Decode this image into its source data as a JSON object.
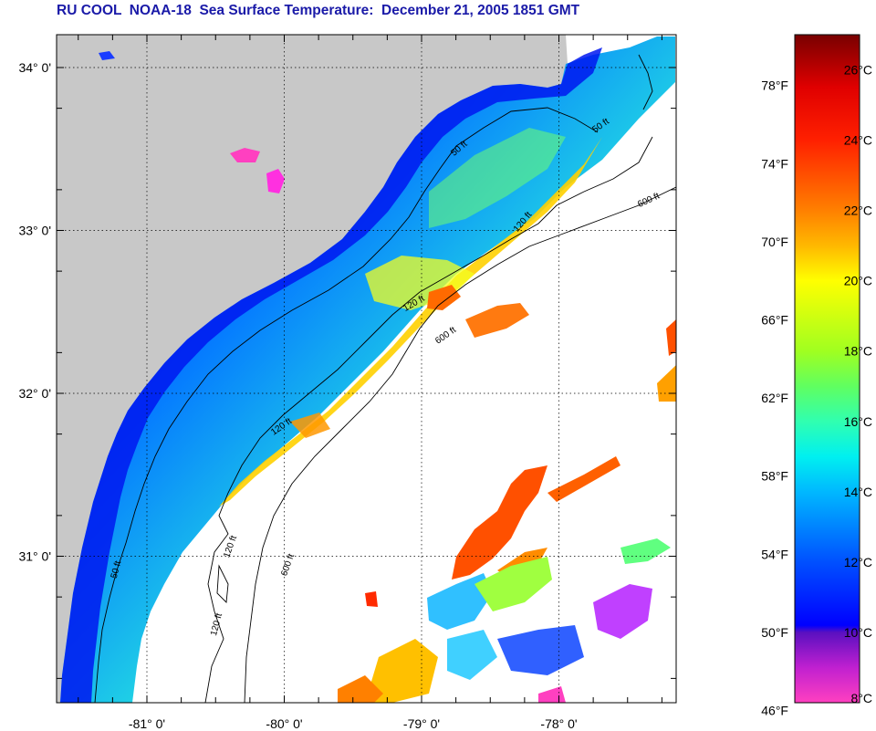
{
  "title": "RU COOL  NOAA-18  Sea Surface Temperature:  December 21, 2005 1851 GMT",
  "map": {
    "lat_labels": [
      {
        "text": "34° 0'",
        "lat": 34
      },
      {
        "text": "33° 0'",
        "lat": 33
      },
      {
        "text": "32° 0'",
        "lat": 32
      },
      {
        "text": "31° 0'",
        "lat": 31
      }
    ],
    "lon_labels": [
      {
        "text": "-81° 0'",
        "lon": -81
      },
      {
        "text": "-80° 0'",
        "lon": -80
      },
      {
        "text": "-79° 0'",
        "lon": -79
      },
      {
        "text": "-78° 0'",
        "lon": -78
      }
    ],
    "land_color": "#c8c8c8",
    "ocean_color": "#ffffff",
    "isobath_labels": [
      "50 ft",
      "120 ft",
      "600 ft"
    ],
    "contour_labels": [
      {
        "text": "50 ft"
      },
      {
        "text": "50 ft"
      },
      {
        "text": "50 ft"
      },
      {
        "text": "120 ft"
      },
      {
        "text": "120 ft"
      },
      {
        "text": "120 ft"
      },
      {
        "text": "120 ft"
      },
      {
        "text": "120 ft"
      },
      {
        "text": "600 ft"
      },
      {
        "text": "600 ft"
      },
      {
        "text": "600 ft"
      }
    ]
  },
  "colorbar": {
    "range_c": [
      8,
      27
    ],
    "range_f": [
      46,
      80.6
    ],
    "fahrenheit_labels": [
      {
        "text": "78°F",
        "f": 78
      },
      {
        "text": "74°F",
        "f": 74
      },
      {
        "text": "70°F",
        "f": 70
      },
      {
        "text": "66°F",
        "f": 66
      },
      {
        "text": "62°F",
        "f": 62
      },
      {
        "text": "58°F",
        "f": 58
      },
      {
        "text": "54°F",
        "f": 54
      },
      {
        "text": "50°F",
        "f": 50
      },
      {
        "text": "46°F",
        "f": 46
      }
    ],
    "celsius_labels": [
      {
        "text": "26°C",
        "c": 26
      },
      {
        "text": "24°C",
        "c": 24
      },
      {
        "text": "22°C",
        "c": 22
      },
      {
        "text": "20°C",
        "c": 20
      },
      {
        "text": "18°C",
        "c": 18
      },
      {
        "text": "16°C",
        "c": 16
      },
      {
        "text": "14°C",
        "c": 14
      },
      {
        "text": "12°C",
        "c": 12
      },
      {
        "text": "10°C",
        "c": 10
      },
      {
        "text": "8°C",
        "c": 8
      }
    ],
    "stops": [
      {
        "c": 8,
        "color": "#ff40c0"
      },
      {
        "c": 9,
        "color": "#c020d0"
      },
      {
        "c": 10,
        "color": "#5a10c0"
      },
      {
        "c": 10.2,
        "color": "#0000ff"
      },
      {
        "c": 12,
        "color": "#0050ff"
      },
      {
        "c": 14,
        "color": "#00b8ff"
      },
      {
        "c": 15,
        "color": "#00f0f0"
      },
      {
        "c": 16,
        "color": "#30ffb0"
      },
      {
        "c": 17,
        "color": "#60ff60"
      },
      {
        "c": 18,
        "color": "#a0ff20"
      },
      {
        "c": 20,
        "color": "#ffff00"
      },
      {
        "c": 21,
        "color": "#ffb800"
      },
      {
        "c": 22,
        "color": "#ff8000"
      },
      {
        "c": 24,
        "color": "#ff2000"
      },
      {
        "c": 25.5,
        "color": "#e00000"
      },
      {
        "c": 27,
        "color": "#780000"
      }
    ]
  }
}
